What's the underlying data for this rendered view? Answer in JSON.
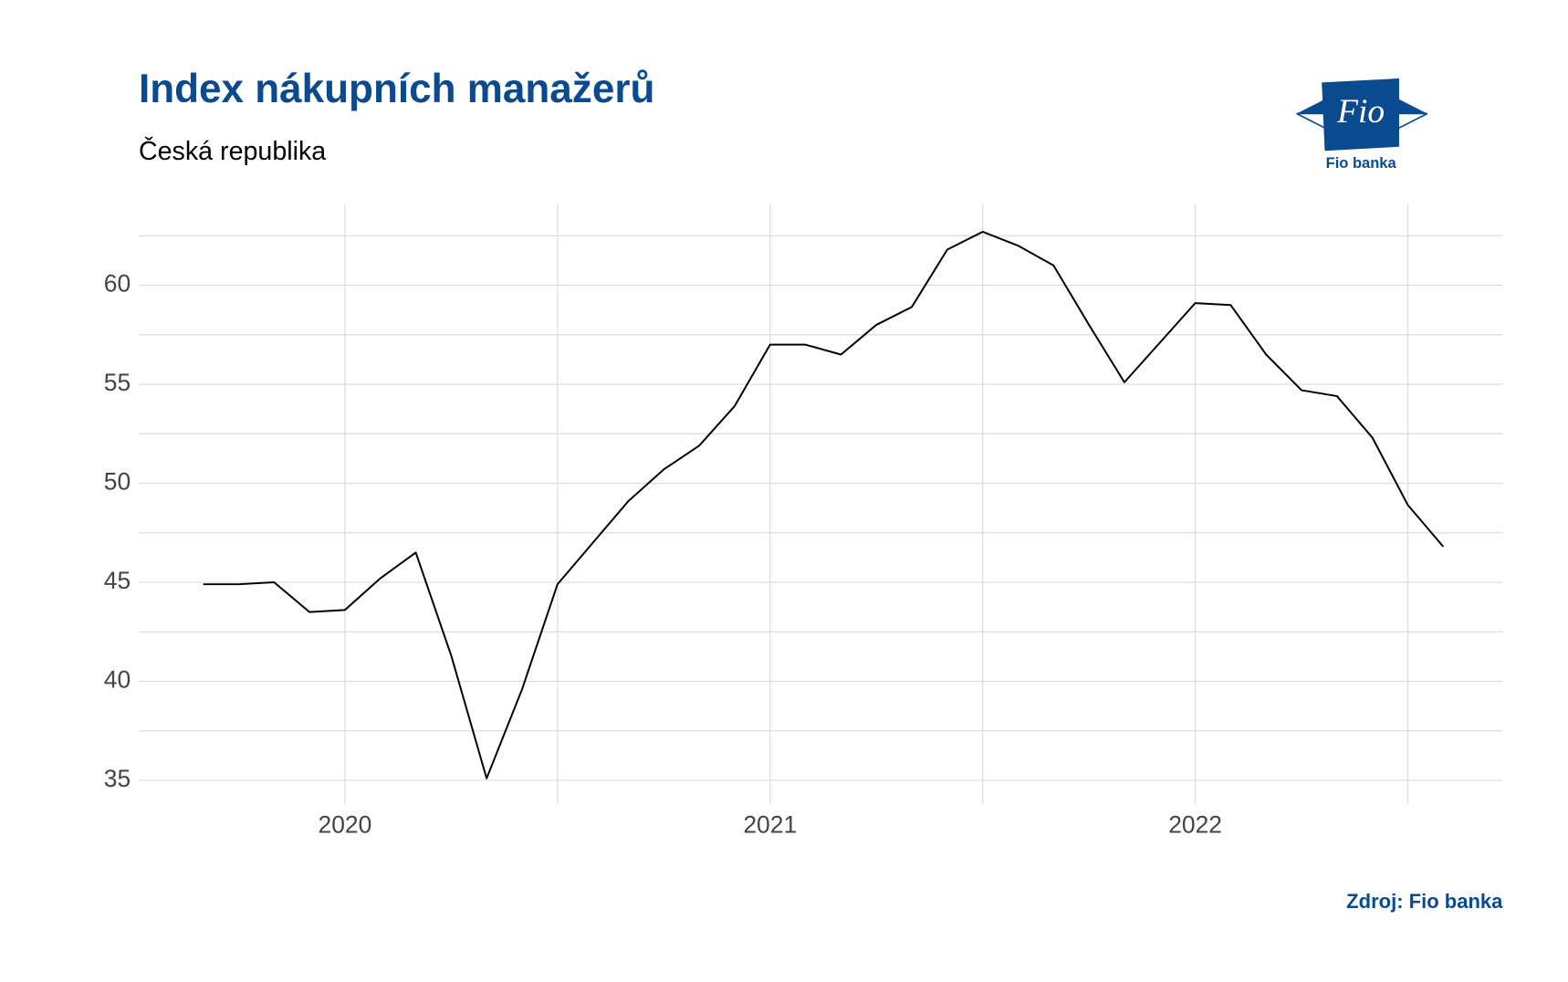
{
  "chart_data": {
    "type": "line",
    "title": "Index nákupních manažerů",
    "subtitle": "Česká republika",
    "source": "Zdroj: Fio banka",
    "logo": {
      "mark": "Fio",
      "name": "Fio banka"
    },
    "x": [
      2019.6667,
      2019.75,
      2019.8333,
      2019.9167,
      2020.0,
      2020.0833,
      2020.1667,
      2020.25,
      2020.3333,
      2020.4167,
      2020.5,
      2020.5833,
      2020.6667,
      2020.75,
      2020.8333,
      2020.9167,
      2021.0,
      2021.0833,
      2021.1667,
      2021.25,
      2021.3333,
      2021.4167,
      2021.5,
      2021.5833,
      2021.6667,
      2021.75,
      2021.8333,
      2021.9167,
      2022.0,
      2022.0833,
      2022.1667,
      2022.25,
      2022.3333,
      2022.4167,
      2022.5,
      2022.5833
    ],
    "series": [
      {
        "color": "#000000",
        "values": [
          44.9,
          44.9,
          45.0,
          43.5,
          43.6,
          45.2,
          46.5,
          41.3,
          35.1,
          39.6,
          44.9,
          47.0,
          49.1,
          50.7,
          51.9,
          53.9,
          57.0,
          57.0,
          56.5,
          58.0,
          58.9,
          61.8,
          62.7,
          62.0,
          61.0,
          58.0,
          55.1,
          57.1,
          59.1,
          59.0,
          56.5,
          54.7,
          54.4,
          52.3,
          48.9,
          46.8
        ]
      }
    ],
    "xlim": [
      2019.515,
      2022.723
    ],
    "ylim": [
      33.8,
      64.1
    ],
    "xticks": [
      2020,
      2021,
      2022
    ],
    "yticks": [
      35,
      40,
      45,
      50,
      55,
      60
    ],
    "grid": true
  }
}
